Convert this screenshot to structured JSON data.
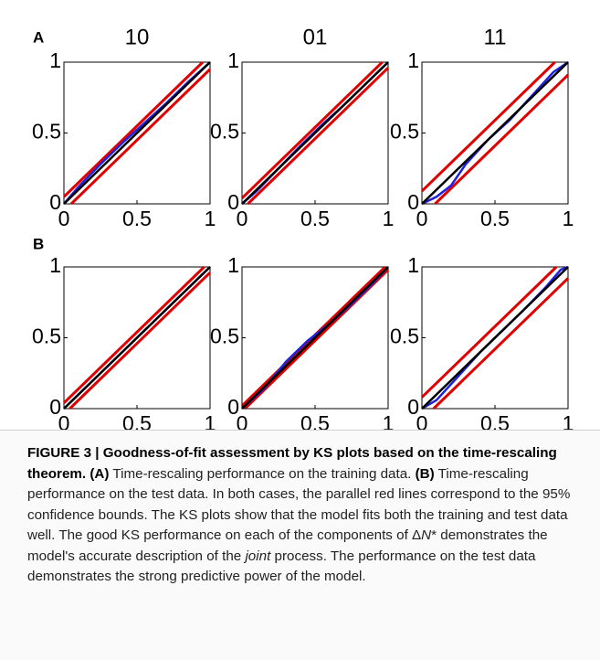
{
  "panels": [
    "A",
    "B"
  ],
  "chart_data": [
    {
      "type": "line",
      "title": "10",
      "xlim": [
        0,
        1
      ],
      "ylim": [
        0,
        1
      ],
      "xticks": [
        0,
        0.5,
        1
      ],
      "yticks": [
        0,
        0.5,
        1
      ],
      "series": [
        {
          "color": "#e00000",
          "x": [
            0,
            0.95
          ],
          "values": [
            0.05,
            1
          ]
        },
        {
          "color": "#e00000",
          "x": [
            0.05,
            1
          ],
          "values": [
            0,
            0.95
          ]
        },
        {
          "color": "#2020e0",
          "x": [
            0,
            0.1,
            0.25,
            0.4,
            0.55,
            0.7,
            0.85,
            1
          ],
          "values": [
            0,
            0.12,
            0.28,
            0.43,
            0.57,
            0.71,
            0.86,
            1
          ]
        },
        {
          "color": "#000000",
          "x": [
            0,
            1
          ],
          "values": [
            0,
            1
          ]
        }
      ]
    },
    {
      "type": "line",
      "title": "01",
      "xlim": [
        0,
        1
      ],
      "ylim": [
        0,
        1
      ],
      "xticks": [
        0,
        0.5,
        1
      ],
      "yticks": [
        0,
        0.5,
        1
      ],
      "series": [
        {
          "color": "#e00000",
          "x": [
            0,
            0.96
          ],
          "values": [
            0.04,
            1
          ]
        },
        {
          "color": "#e00000",
          "x": [
            0.04,
            1
          ],
          "values": [
            0,
            0.96
          ]
        },
        {
          "color": "#2020e0",
          "x": [
            0,
            0.1,
            0.25,
            0.4,
            0.55,
            0.7,
            0.85,
            1
          ],
          "values": [
            0,
            0.09,
            0.25,
            0.41,
            0.56,
            0.7,
            0.85,
            1
          ]
        },
        {
          "color": "#000000",
          "x": [
            0,
            1
          ],
          "values": [
            0,
            1
          ]
        }
      ]
    },
    {
      "type": "line",
      "title": "11",
      "xlim": [
        0,
        1
      ],
      "ylim": [
        0,
        1
      ],
      "xticks": [
        0,
        0.5,
        1
      ],
      "yticks": [
        0,
        0.5,
        1
      ],
      "series": [
        {
          "color": "#e00000",
          "x": [
            0,
            0.91
          ],
          "values": [
            0.09,
            1
          ]
        },
        {
          "color": "#e00000",
          "x": [
            0.09,
            1
          ],
          "values": [
            0,
            0.91
          ]
        },
        {
          "color": "#2020e0",
          "x": [
            0,
            0.1,
            0.2,
            0.3,
            0.45,
            0.6,
            0.75,
            0.9,
            1
          ],
          "values": [
            0,
            0.05,
            0.13,
            0.28,
            0.45,
            0.59,
            0.76,
            0.93,
            1
          ]
        },
        {
          "color": "#000000",
          "x": [
            0,
            1
          ],
          "values": [
            0,
            1
          ]
        }
      ]
    },
    {
      "type": "line",
      "xlim": [
        0,
        1
      ],
      "ylim": [
        0,
        1
      ],
      "xticks": [
        0,
        0.5,
        1
      ],
      "yticks": [
        0,
        0.5,
        1
      ],
      "series": [
        {
          "color": "#e00000",
          "x": [
            0,
            0.96
          ],
          "values": [
            0.04,
            1
          ]
        },
        {
          "color": "#e00000",
          "x": [
            0.04,
            1
          ],
          "values": [
            0,
            0.96
          ]
        },
        {
          "color": "#2020e0",
          "x": [
            0,
            0.1,
            0.25,
            0.4,
            0.55,
            0.7,
            0.85,
            1
          ],
          "values": [
            0,
            0.1,
            0.25,
            0.4,
            0.55,
            0.7,
            0.85,
            1
          ]
        },
        {
          "color": "#000000",
          "x": [
            0,
            1
          ],
          "values": [
            0,
            1
          ]
        }
      ]
    },
    {
      "type": "line",
      "xlim": [
        0,
        1
      ],
      "ylim": [
        0,
        1
      ],
      "xticks": [
        0,
        0.5,
        1
      ],
      "yticks": [
        0,
        0.5,
        1
      ],
      "series": [
        {
          "color": "#e00000",
          "x": [
            0,
            0.98
          ],
          "values": [
            0.02,
            1
          ]
        },
        {
          "color": "#e00000",
          "x": [
            0.02,
            1
          ],
          "values": [
            0,
            0.98
          ]
        },
        {
          "color": "#2020e0",
          "x": [
            0,
            0.15,
            0.3,
            0.45,
            0.6,
            0.75,
            0.9,
            1
          ],
          "values": [
            0,
            0.14,
            0.33,
            0.48,
            0.6,
            0.74,
            0.89,
            1
          ]
        },
        {
          "color": "#000000",
          "x": [
            0,
            1
          ],
          "values": [
            0,
            1
          ]
        }
      ]
    },
    {
      "type": "line",
      "xlim": [
        0,
        1
      ],
      "ylim": [
        0,
        1
      ],
      "xticks": [
        0,
        0.5,
        1
      ],
      "yticks": [
        0,
        0.5,
        1
      ],
      "series": [
        {
          "color": "#e00000",
          "x": [
            0,
            0.92
          ],
          "values": [
            0.08,
            1
          ]
        },
        {
          "color": "#e00000",
          "x": [
            0.08,
            1
          ],
          "values": [
            0,
            0.92
          ]
        },
        {
          "color": "#2020e0",
          "x": [
            0,
            0.1,
            0.25,
            0.4,
            0.55,
            0.7,
            0.85,
            0.95,
            1
          ],
          "values": [
            0,
            0.06,
            0.23,
            0.4,
            0.55,
            0.7,
            0.86,
            0.98,
            1
          ]
        },
        {
          "color": "#000000",
          "x": [
            0,
            1
          ],
          "values": [
            0,
            1
          ]
        }
      ]
    }
  ],
  "caption": [
    {
      "text": "FIGURE 3 | Goodness-of-fit assessment by KS plots based on the time-rescaling theorem.",
      "bold": true
    },
    {
      "text": " "
    },
    {
      "text": "(A)",
      "bold": true
    },
    {
      "text": " Time-rescaling performance on the training data. "
    },
    {
      "text": "(B)",
      "bold": true
    },
    {
      "text": " Time-rescaling performance on the test data. In both cases, the parallel red lines correspond to the 95% confidence bounds. The KS plots show that the model fits both the training and test data well. The good KS performance on each of the components of Δ"
    },
    {
      "text": "N",
      "italic": true
    },
    {
      "text": "* demonstrates the model's accurate description of the "
    },
    {
      "text": "joint",
      "italic": true
    },
    {
      "text": " process. The performance on the test data demonstrates the strong predictive power of the model."
    }
  ]
}
